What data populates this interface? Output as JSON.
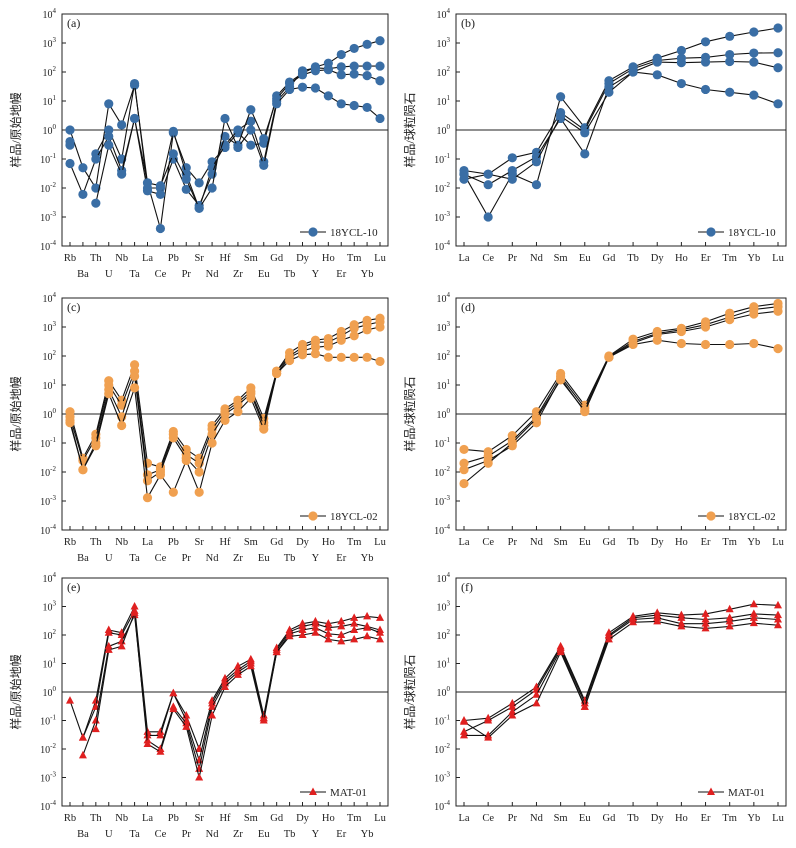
{
  "figure_labels": {
    "mantle_ylabel": "样品/原始地幔",
    "chondrite_ylabel": "样品/球粒陨石"
  },
  "chart_data": [
    {
      "panel": "(a)",
      "type": "line",
      "ylabel": "样品/原始地幔",
      "log_scale": true,
      "ylim": [
        0.0001,
        10000
      ],
      "reference_line": 1,
      "grid": false,
      "legend": "bottom-right",
      "categories": [
        "Rb",
        "Ba",
        "Th",
        "U",
        "Nb",
        "Ta",
        "La",
        "Ce",
        "Pb",
        "Pr",
        "Sr",
        "Nd",
        "Hf",
        "Zr",
        "Sm",
        "Eu",
        "Gd",
        "Tb",
        "Dy",
        "Y",
        "Ho",
        "Er",
        "Tm",
        "Yb",
        "Lu"
      ],
      "marker": "circle",
      "color": "#3a6ea5",
      "series": [
        {
          "name": "18YCL-10",
          "values": [
            1.0,
            0.05,
            0.01,
            8,
            1.5,
            35,
            0.015,
            0.0004,
            0.8,
            0.05,
            0.015,
            0.08,
            0.25,
            0.8,
            0.3,
            0.35,
            15,
            45,
            90,
            150,
            200,
            400,
            650,
            900,
            1200
          ]
        },
        {
          "values": [
            0.4,
            null,
            0.15,
            1.0,
            0.1,
            40,
            0.01,
            0.01,
            0.9,
            0.03,
            0.002,
            0.05,
            0.3,
            1.0,
            2.0,
            0.08,
            10,
            30,
            110,
            140,
            130,
            150,
            160,
            160,
            160
          ]
        },
        {
          "values": [
            0.07,
            0.006,
            0.1,
            0.6,
            0.04,
            2.5,
            0.008,
            0.006,
            0.1,
            0.009,
            0.0025,
            0.03,
            0.6,
            0.3,
            5,
            0.5,
            12,
            40,
            80,
            110,
            120,
            80,
            85,
            75,
            50
          ]
        },
        {
          "values": [
            0.3,
            null,
            0.003,
            0.3,
            0.03,
            2.5,
            0.015,
            0.012,
            0.15,
            0.02,
            0.002,
            0.01,
            2.5,
            0.25,
            1.0,
            0.06,
            8,
            25,
            30,
            28,
            15,
            8,
            7,
            6,
            2.5
          ]
        }
      ]
    },
    {
      "panel": "(b)",
      "type": "line",
      "ylabel": "样品/球粒陨石",
      "log_scale": true,
      "ylim": [
        0.0001,
        10000
      ],
      "reference_line": 1,
      "grid": false,
      "legend": "bottom-right",
      "categories": [
        "La",
        "Ce",
        "Pr",
        "Nd",
        "Sm",
        "Eu",
        "Gd",
        "Tb",
        "Dy",
        "Ho",
        "Er",
        "Tm",
        "Yb",
        "Lu"
      ],
      "marker": "circle",
      "color": "#3a6ea5",
      "series": [
        {
          "name": "18YCL-10",
          "values": [
            0.03,
            0.001,
            0.03,
            0.013,
            14,
            1.2,
            50,
            150,
            300,
            550,
            1100,
            1700,
            2400,
            3300
          ]
        },
        {
          "values": [
            0.04,
            0.03,
            0.11,
            0.17,
            4,
            1.0,
            40,
            130,
            250,
            300,
            320,
            400,
            450,
            460
          ]
        },
        {
          "values": [
            0.03,
            0.013,
            0.04,
            0.12,
            2.5,
            0.15,
            30,
            100,
            220,
            210,
            220,
            230,
            220,
            140
          ]
        },
        {
          "values": [
            0.02,
            0.03,
            0.02,
            0.08,
            3,
            0.8,
            20,
            100,
            80,
            40,
            25,
            20,
            16,
            8
          ]
        }
      ]
    },
    {
      "panel": "(c)",
      "type": "line",
      "ylabel": "样品/原始地幔",
      "log_scale": true,
      "ylim": [
        0.0001,
        10000
      ],
      "reference_line": 1,
      "grid": false,
      "legend": "bottom-right",
      "categories": [
        "Rb",
        "Ba",
        "Th",
        "U",
        "Nb",
        "Ta",
        "La",
        "Ce",
        "Pb",
        "Pr",
        "Sr",
        "Nd",
        "Hf",
        "Zr",
        "Sm",
        "Eu",
        "Gd",
        "Tb",
        "Dy",
        "Y",
        "Ho",
        "Er",
        "Tm",
        "Yb",
        "Lu"
      ],
      "marker": "circle",
      "color": "#f0a050",
      "series": [
        {
          "name": "18YCL-02",
          "values": [
            1.2,
            0.03,
            0.2,
            14,
            3,
            50,
            0.02,
            0.015,
            0.25,
            0.06,
            0.03,
            0.4,
            1.5,
            3,
            8,
            0.7,
            30,
            130,
            250,
            350,
            400,
            700,
            1200,
            1700,
            2000
          ]
        },
        {
          "values": [
            0.8,
            0.025,
            0.15,
            10,
            2,
            30,
            0.008,
            0.012,
            0.2,
            0.04,
            0.02,
            0.3,
            1.2,
            2.5,
            6,
            0.5,
            30,
            100,
            200,
            300,
            300,
            500,
            900,
            1200,
            1500
          ]
        },
        {
          "values": [
            0.6,
            0.012,
            0.1,
            7,
            0.8,
            20,
            0.005,
            0.01,
            0.15,
            0.03,
            0.01,
            0.2,
            1.0,
            2.0,
            5,
            0.4,
            25,
            90,
            150,
            200,
            220,
            350,
            500,
            800,
            1000
          ]
        },
        {
          "values": [
            0.5,
            0.012,
            0.08,
            5,
            0.4,
            8,
            0.0013,
            0.008,
            0.002,
            0.025,
            0.002,
            0.1,
            0.6,
            1.2,
            3.5,
            0.3,
            25,
            70,
            110,
            120,
            90,
            90,
            90,
            90,
            65
          ]
        }
      ]
    },
    {
      "panel": "(d)",
      "type": "line",
      "ylabel": "样品/球粒陨石",
      "log_scale": true,
      "ylim": [
        0.0001,
        10000
      ],
      "reference_line": 1,
      "grid": false,
      "legend": "bottom-right",
      "categories": [
        "La",
        "Ce",
        "Pr",
        "Nd",
        "Sm",
        "Eu",
        "Gd",
        "Tb",
        "Dy",
        "Ho",
        "Er",
        "Tm",
        "Yb",
        "Lu"
      ],
      "marker": "circle",
      "color": "#f0a050",
      "series": [
        {
          "name": "18YCL-02",
          "values": [
            0.06,
            0.05,
            0.18,
            1.2,
            25,
            2.0,
            100,
            380,
            700,
            900,
            1500,
            3000,
            5000,
            6500
          ]
        },
        {
          "values": [
            0.02,
            0.035,
            0.12,
            0.8,
            20,
            1.6,
            95,
            320,
            600,
            800,
            1200,
            2200,
            4000,
            5000
          ]
        },
        {
          "values": [
            0.012,
            0.025,
            0.08,
            0.5,
            17,
            1.2,
            90,
            280,
            550,
            700,
            1000,
            1800,
            2800,
            3500
          ]
        },
        {
          "values": [
            0.004,
            0.02,
            0.1,
            0.7,
            15,
            1.3,
            90,
            250,
            350,
            270,
            250,
            250,
            270,
            180
          ]
        }
      ]
    },
    {
      "panel": "(e)",
      "type": "line",
      "ylabel": "样品/原始地幔",
      "log_scale": true,
      "ylim": [
        0.0001,
        10000
      ],
      "reference_line": 1,
      "grid": false,
      "legend": "bottom-right",
      "categories": [
        "Rb",
        "Ba",
        "Th",
        "U",
        "Nb",
        "Ta",
        "La",
        "Ce",
        "Pb",
        "Pr",
        "Sr",
        "Nd",
        "Hf",
        "Zr",
        "Sm",
        "Eu",
        "Gd",
        "Tb",
        "Dy",
        "Y",
        "Ho",
        "Er",
        "Tm",
        "Yb",
        "Lu"
      ],
      "marker": "triangle",
      "color": "#e02020",
      "series": [
        {
          "name": "MAT-01",
          "values": [
            0.5,
            0.025,
            0.5,
            150,
            120,
            1000,
            0.04,
            0.04,
            0.9,
            0.15,
            0.01,
            0.5,
            3,
            8,
            14,
            0.15,
            35,
            150,
            250,
            300,
            250,
            300,
            400,
            450,
            400
          ]
        },
        {
          "values": [
            null,
            0.025,
            0.3,
            120,
            100,
            700,
            0.03,
            0.03,
            0.9,
            0.1,
            0.004,
            0.4,
            2.5,
            6,
            12,
            0.12,
            30,
            130,
            200,
            250,
            180,
            200,
            250,
            200,
            150
          ]
        },
        {
          "values": [
            null,
            0.006,
            0.1,
            40,
            60,
            500,
            0.02,
            0.01,
            0.3,
            0.08,
            0.002,
            0.3,
            2.0,
            5,
            10,
            0.12,
            25,
            110,
            150,
            180,
            110,
            100,
            150,
            180,
            120
          ]
        },
        {
          "values": [
            null,
            null,
            0.05,
            30,
            40,
            600,
            0.015,
            0.008,
            0.25,
            0.06,
            0.001,
            0.15,
            1.5,
            4,
            8,
            0.1,
            25,
            90,
            100,
            120,
            70,
            60,
            70,
            90,
            70
          ]
        }
      ]
    },
    {
      "panel": "(f)",
      "type": "line",
      "ylabel": "样品/球粒陨石",
      "log_scale": true,
      "ylim": [
        0.0001,
        10000
      ],
      "reference_line": 1,
      "grid": false,
      "legend": "bottom-right",
      "categories": [
        "La",
        "Ce",
        "Pr",
        "Nd",
        "Sm",
        "Eu",
        "Gd",
        "Tb",
        "Dy",
        "Ho",
        "Er",
        "Tm",
        "Yb",
        "Lu"
      ],
      "marker": "triangle",
      "color": "#e02020",
      "series": [
        {
          "name": "MAT-01",
          "values": [
            0.1,
            0.12,
            0.4,
            1.5,
            40,
            0.5,
            120,
            450,
            600,
            500,
            550,
            800,
            1200,
            1100
          ]
        },
        {
          "values": [
            0.04,
            0.1,
            0.3,
            1.2,
            35,
            0.4,
            100,
            400,
            500,
            400,
            350,
            400,
            550,
            500
          ]
        },
        {
          "values": [
            0.03,
            0.03,
            0.2,
            0.8,
            30,
            0.3,
            90,
            350,
            400,
            250,
            250,
            300,
            400,
            350
          ]
        },
        {
          "values": [
            0.09,
            0.025,
            0.15,
            0.4,
            25,
            0.3,
            70,
            280,
            300,
            200,
            170,
            200,
            260,
            220
          ]
        }
      ]
    }
  ]
}
